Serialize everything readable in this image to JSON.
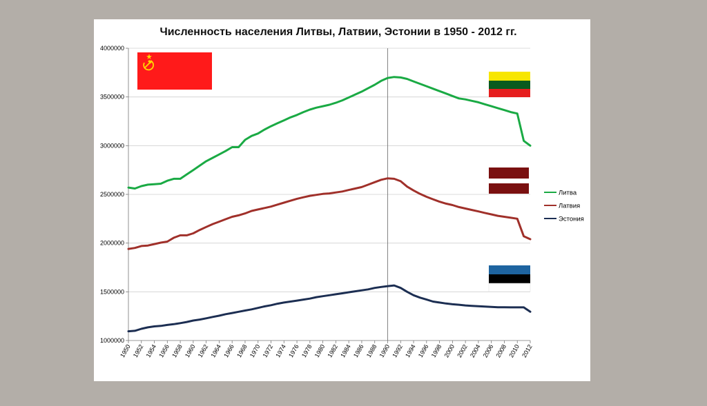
{
  "chart_data": {
    "type": "line",
    "title": "Численность населения Литвы, Латвии, Эстонии в 1950 - 2012 гг.",
    "xlabel": "",
    "ylabel": "",
    "ylim": [
      1000000,
      4000000
    ],
    "yticks": [
      "1000000",
      "1500000",
      "2000000",
      "2500000",
      "3000000",
      "3500000",
      "4000000"
    ],
    "xlim": [
      1950,
      2012
    ],
    "xticks": [
      "1950",
      "1952",
      "1954",
      "1956",
      "1958",
      "1960",
      "1962",
      "1964",
      "1966",
      "1968",
      "1970",
      "1972",
      "1974",
      "1976",
      "1978",
      "1980",
      "1982",
      "1984",
      "1986",
      "1988",
      "1990",
      "1992",
      "1994",
      "1996",
      "1998",
      "2000",
      "2002",
      "2004",
      "2006",
      "2008",
      "2010",
      "2012"
    ],
    "marker_line_x": 1990,
    "legend_position": "right",
    "series": [
      {
        "name": "Литва",
        "color": "#1aaa44",
        "x": [
          1950,
          1951,
          1952,
          1953,
          1954,
          1955,
          1956,
          1957,
          1958,
          1959,
          1960,
          1961,
          1962,
          1963,
          1964,
          1965,
          1966,
          1967,
          1968,
          1969,
          1970,
          1971,
          1972,
          1973,
          1974,
          1975,
          1976,
          1977,
          1978,
          1979,
          1980,
          1981,
          1982,
          1983,
          1984,
          1985,
          1986,
          1987,
          1988,
          1989,
          1990,
          1991,
          1992,
          1993,
          1994,
          1995,
          1996,
          1997,
          1998,
          1999,
          2000,
          2001,
          2002,
          2003,
          2004,
          2005,
          2006,
          2007,
          2008,
          2009,
          2010,
          2011,
          2012
        ],
        "values": [
          2570000,
          2560000,
          2585000,
          2600000,
          2605000,
          2610000,
          2640000,
          2660000,
          2660000,
          2705000,
          2750000,
          2795000,
          2840000,
          2875000,
          2910000,
          2945000,
          2985000,
          2985000,
          3060000,
          3100000,
          3125000,
          3165000,
          3200000,
          3230000,
          3260000,
          3290000,
          3315000,
          3345000,
          3370000,
          3390000,
          3405000,
          3420000,
          3440000,
          3465000,
          3495000,
          3525000,
          3555000,
          3590000,
          3625000,
          3665000,
          3695000,
          3705000,
          3700000,
          3685000,
          3660000,
          3635000,
          3610000,
          3585000,
          3560000,
          3535000,
          3510000,
          3485000,
          3475000,
          3460000,
          3445000,
          3425000,
          3405000,
          3385000,
          3365000,
          3345000,
          3330000,
          3050000,
          3000000
        ]
      },
      {
        "name": "Латвия",
        "color": "#a0302a",
        "x": [
          1950,
          1951,
          1952,
          1953,
          1954,
          1955,
          1956,
          1957,
          1958,
          1959,
          1960,
          1961,
          1962,
          1963,
          1964,
          1965,
          1966,
          1967,
          1968,
          1969,
          1970,
          1971,
          1972,
          1973,
          1974,
          1975,
          1976,
          1977,
          1978,
          1979,
          1980,
          1981,
          1982,
          1983,
          1984,
          1985,
          1986,
          1987,
          1988,
          1989,
          1990,
          1991,
          1992,
          1993,
          1994,
          1995,
          1996,
          1997,
          1998,
          1999,
          2000,
          2001,
          2002,
          2003,
          2004,
          2005,
          2006,
          2007,
          2008,
          2009,
          2010,
          2011,
          2012
        ],
        "values": [
          1940000,
          1950000,
          1970000,
          1975000,
          1990000,
          2005000,
          2015000,
          2055000,
          2080000,
          2080000,
          2100000,
          2135000,
          2165000,
          2195000,
          2220000,
          2245000,
          2270000,
          2285000,
          2305000,
          2330000,
          2345000,
          2360000,
          2375000,
          2395000,
          2415000,
          2435000,
          2455000,
          2470000,
          2485000,
          2495000,
          2505000,
          2510000,
          2520000,
          2530000,
          2545000,
          2560000,
          2575000,
          2600000,
          2625000,
          2650000,
          2665000,
          2660000,
          2635000,
          2580000,
          2540000,
          2505000,
          2475000,
          2450000,
          2425000,
          2405000,
          2390000,
          2370000,
          2355000,
          2340000,
          2325000,
          2310000,
          2295000,
          2280000,
          2270000,
          2260000,
          2250000,
          2070000,
          2040000
        ]
      },
      {
        "name": "Эстония",
        "color": "#1c2e52",
        "x": [
          1950,
          1951,
          1952,
          1953,
          1954,
          1955,
          1956,
          1957,
          1958,
          1959,
          1960,
          1961,
          1962,
          1963,
          1964,
          1965,
          1966,
          1967,
          1968,
          1969,
          1970,
          1971,
          1972,
          1973,
          1974,
          1975,
          1976,
          1977,
          1978,
          1979,
          1980,
          1981,
          1982,
          1983,
          1984,
          1985,
          1986,
          1987,
          1988,
          1989,
          1990,
          1991,
          1992,
          1993,
          1994,
          1995,
          1996,
          1997,
          1998,
          1999,
          2000,
          2001,
          2002,
          2003,
          2004,
          2005,
          2006,
          2007,
          2008,
          2009,
          2010,
          2011,
          2012
        ],
        "values": [
          1095000,
          1100000,
          1120000,
          1135000,
          1145000,
          1150000,
          1160000,
          1168000,
          1178000,
          1190000,
          1205000,
          1215000,
          1228000,
          1242000,
          1255000,
          1270000,
          1282000,
          1295000,
          1308000,
          1320000,
          1335000,
          1350000,
          1362000,
          1378000,
          1390000,
          1400000,
          1410000,
          1420000,
          1430000,
          1445000,
          1455000,
          1465000,
          1475000,
          1485000,
          1495000,
          1505000,
          1515000,
          1525000,
          1540000,
          1550000,
          1558000,
          1565000,
          1540000,
          1500000,
          1465000,
          1440000,
          1420000,
          1400000,
          1390000,
          1380000,
          1372000,
          1367000,
          1360000,
          1356000,
          1352000,
          1348000,
          1345000,
          1342000,
          1341000,
          1340000,
          1340000,
          1340000,
          1295000
        ]
      }
    ],
    "flags": [
      {
        "name": "USSR flag",
        "colors": [
          "#ff1a1a",
          "#ffd700"
        ]
      },
      {
        "name": "Lithuania flag",
        "colors": [
          "#f7e600",
          "#0a5a1e",
          "#e61e1e"
        ]
      },
      {
        "name": "Latvia flag",
        "colors": [
          "#7a1010",
          "#ffffff"
        ]
      },
      {
        "name": "Estonia flag",
        "colors": [
          "#1e64a0",
          "#000000",
          "#ffffff"
        ]
      }
    ]
  }
}
